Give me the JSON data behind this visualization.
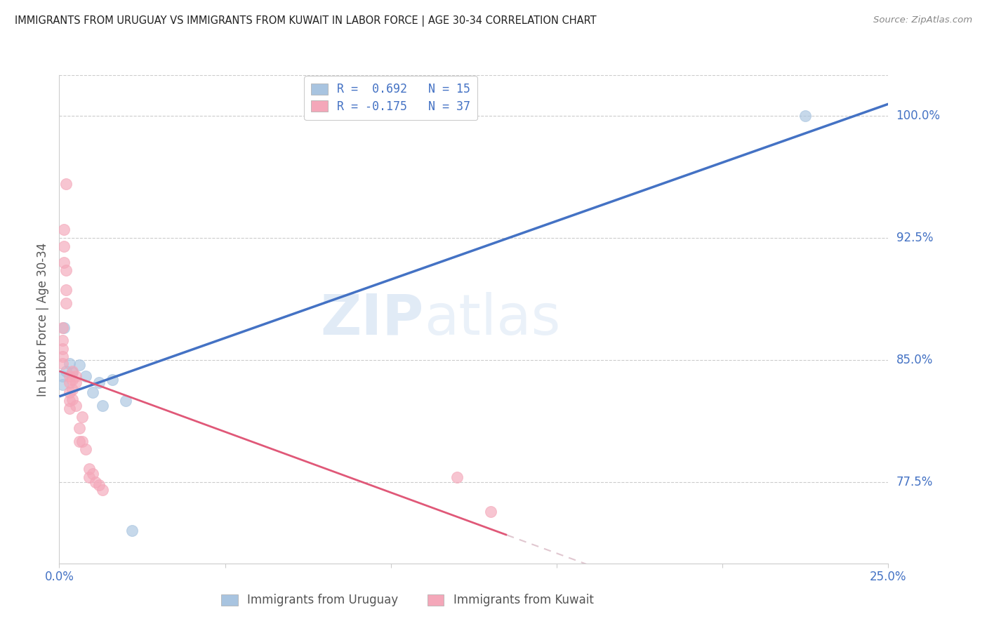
{
  "title": "IMMIGRANTS FROM URUGUAY VS IMMIGRANTS FROM KUWAIT IN LABOR FORCE | AGE 30-34 CORRELATION CHART",
  "source": "Source: ZipAtlas.com",
  "ylabel": "In Labor Force | Age 30-34",
  "xlim": [
    0.0,
    0.25
  ],
  "ylim": [
    0.725,
    1.025
  ],
  "xticks": [
    0.0,
    0.05,
    0.1,
    0.15,
    0.2,
    0.25
  ],
  "xticklabels": [
    "0.0%",
    "",
    "",
    "",
    "",
    "25.0%"
  ],
  "yticks": [
    0.775,
    0.85,
    0.925,
    1.0
  ],
  "yticklabels": [
    "77.5%",
    "85.0%",
    "92.5%",
    "100.0%"
  ],
  "watermark_zip": "ZIP",
  "watermark_atlas": "atlas",
  "legend_line1": "R =  0.692   N = 15",
  "legend_line2": "R = -0.175   N = 37",
  "color_uruguay": "#a8c4e0",
  "color_kuwait": "#f4a7b9",
  "line_color_uruguay": "#4472c4",
  "line_color_kuwait": "#e05878",
  "line_color_kuwait_dash": "#d4b0bc",
  "scatter_alpha": 0.65,
  "scatter_size": 130,
  "uruguay_x": [
    0.001,
    0.001,
    0.0015,
    0.002,
    0.003,
    0.004,
    0.006,
    0.008,
    0.01,
    0.012,
    0.013,
    0.016,
    0.02,
    0.022,
    0.225
  ],
  "uruguay_y": [
    0.84,
    0.835,
    0.87,
    0.843,
    0.848,
    0.842,
    0.847,
    0.84,
    0.83,
    0.836,
    0.822,
    0.838,
    0.825,
    0.745,
    1.0
  ],
  "kuwait_x": [
    0.001,
    0.001,
    0.001,
    0.001,
    0.001,
    0.0015,
    0.0015,
    0.0015,
    0.002,
    0.002,
    0.002,
    0.002,
    0.003,
    0.003,
    0.003,
    0.003,
    0.003,
    0.004,
    0.004,
    0.004,
    0.004,
    0.005,
    0.005,
    0.005,
    0.006,
    0.006,
    0.007,
    0.007,
    0.008,
    0.009,
    0.009,
    0.01,
    0.011,
    0.012,
    0.013,
    0.12,
    0.13
  ],
  "kuwait_y": [
    0.87,
    0.862,
    0.857,
    0.852,
    0.848,
    0.93,
    0.92,
    0.91,
    0.958,
    0.905,
    0.893,
    0.885,
    0.84,
    0.836,
    0.83,
    0.825,
    0.82,
    0.843,
    0.838,
    0.832,
    0.826,
    0.84,
    0.836,
    0.822,
    0.808,
    0.8,
    0.815,
    0.8,
    0.795,
    0.783,
    0.778,
    0.78,
    0.775,
    0.773,
    0.77,
    0.778,
    0.757
  ],
  "background_color": "#ffffff",
  "grid_color": "#cccccc",
  "tick_color": "#4472c4",
  "ylabel_color": "#555555",
  "title_color": "#222222",
  "source_color": "#888888"
}
